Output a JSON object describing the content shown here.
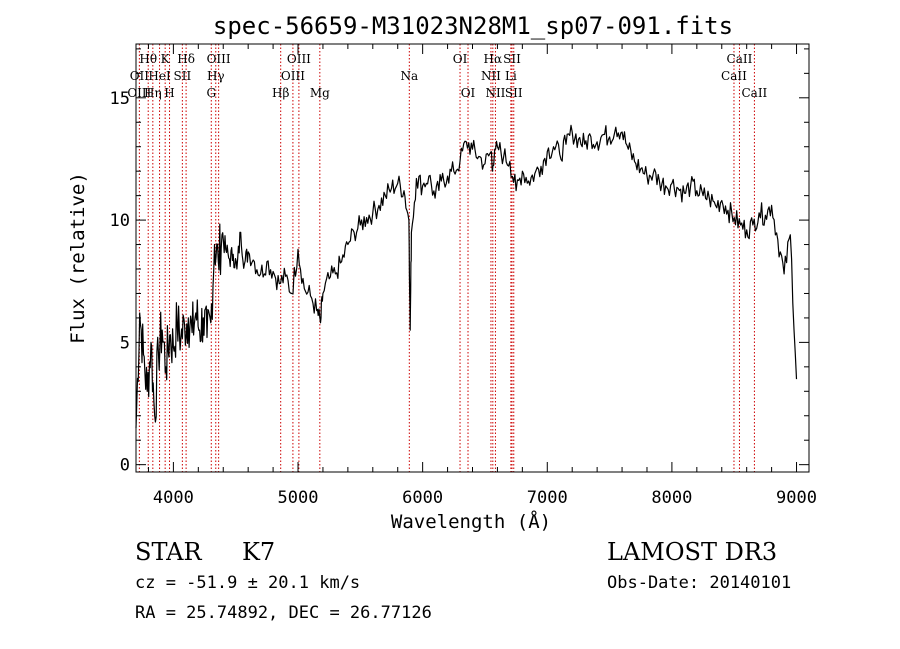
{
  "chart_data": {
    "type": "line",
    "title": "spec-56659-M31023N28M1_sp07-091.fits",
    "xlabel": "Wavelength (Å)",
    "ylabel": "Flux (relative)",
    "xlim": [
      3700,
      9100
    ],
    "ylim": [
      -0.3,
      17.2
    ],
    "x_ticks": [
      4000,
      5000,
      6000,
      7000,
      8000,
      9000
    ],
    "y_ticks": [
      0,
      5,
      10,
      15
    ],
    "series": [
      {
        "name": "spectrum",
        "x": [
          3700,
          3730,
          3760,
          3790,
          3820,
          3850,
          3880,
          3910,
          3940,
          3970,
          4000,
          4030,
          4060,
          4090,
          4120,
          4150,
          4180,
          4210,
          4240,
          4270,
          4300,
          4330,
          4360,
          4390,
          4420,
          4450,
          4480,
          4510,
          4540,
          4570,
          4600,
          4650,
          4700,
          4750,
          4800,
          4850,
          4900,
          4950,
          5000,
          5050,
          5100,
          5150,
          5180,
          5200,
          5250,
          5300,
          5350,
          5400,
          5450,
          5500,
          5550,
          5600,
          5650,
          5700,
          5750,
          5800,
          5850,
          5890,
          5900,
          5910,
          5950,
          6000,
          6050,
          6100,
          6150,
          6200,
          6250,
          6300,
          6350,
          6400,
          6450,
          6500,
          6550,
          6563,
          6600,
          6650,
          6700,
          6750,
          6800,
          6850,
          6900,
          6950,
          7000,
          7050,
          7100,
          7150,
          7200,
          7250,
          7300,
          7350,
          7400,
          7450,
          7500,
          7550,
          7600,
          7650,
          7700,
          7750,
          7800,
          7850,
          7900,
          7950,
          8000,
          8050,
          8100,
          8150,
          8200,
          8250,
          8300,
          8350,
          8400,
          8450,
          8500,
          8550,
          8600,
          8650,
          8700,
          8750,
          8800,
          8850,
          8900,
          8950,
          9000
        ],
        "y": [
          1.5,
          6.2,
          4.5,
          3.0,
          5.0,
          2.0,
          4.6,
          5.5,
          4.0,
          5.3,
          4.8,
          5.8,
          5.2,
          5.7,
          6.0,
          5.4,
          6.2,
          5.5,
          6.0,
          5.2,
          5.8,
          9.0,
          8.3,
          9.4,
          8.8,
          8.4,
          8.6,
          8.0,
          9.5,
          8.2,
          8.7,
          8.3,
          7.8,
          8.3,
          7.9,
          7.4,
          7.7,
          7.0,
          8.8,
          7.2,
          6.9,
          6.3,
          5.8,
          7.0,
          7.6,
          7.8,
          8.3,
          9.0,
          9.5,
          9.8,
          10.1,
          10.3,
          10.6,
          11.0,
          11.3,
          11.5,
          11.2,
          10.0,
          5.5,
          9.5,
          11.7,
          11.4,
          11.8,
          10.9,
          11.6,
          11.8,
          12.0,
          12.4,
          13.2,
          12.9,
          12.6,
          12.3,
          12.8,
          12.2,
          13.0,
          12.6,
          12.4,
          11.2,
          12.0,
          11.6,
          11.9,
          12.2,
          12.8,
          13.0,
          12.7,
          13.1,
          13.6,
          13.3,
          13.1,
          13.4,
          13.2,
          13.5,
          13.4,
          13.8,
          13.6,
          12.9,
          12.4,
          12.1,
          11.8,
          11.9,
          11.6,
          11.4,
          11.5,
          11.3,
          11.1,
          11.4,
          11.2,
          11.0,
          10.9,
          10.6,
          10.8,
          10.4,
          10.1,
          9.8,
          9.6,
          9.8,
          10.3,
          10.2,
          10.6,
          9.2,
          7.8,
          9.4,
          3.5
        ]
      }
    ],
    "line_labels": [
      {
        "text": "Hθ",
        "row": 1,
        "wavelength": 3798
      },
      {
        "text": "K",
        "row": 1,
        "wavelength": 3934
      },
      {
        "text": "Hδ",
        "row": 1,
        "wavelength": 4102
      },
      {
        "text": "OIII",
        "row": 1,
        "wavelength": 4363
      },
      {
        "text": "OIII",
        "row": 1,
        "wavelength": 5007
      },
      {
        "text": "OI",
        "row": 1,
        "wavelength": 6300
      },
      {
        "text": "Hα",
        "row": 1,
        "wavelength": 6563
      },
      {
        "text": "SII",
        "row": 1,
        "wavelength": 6717
      },
      {
        "text": "CaII",
        "row": 1,
        "wavelength": 8542
      },
      {
        "text": "OII",
        "row": 2,
        "wavelength": 3727
      },
      {
        "text": "HeI",
        "row": 2,
        "wavelength": 3889
      },
      {
        "text": "SII",
        "row": 2,
        "wavelength": 4072
      },
      {
        "text": "Hγ",
        "row": 2,
        "wavelength": 4340
      },
      {
        "text": "OIII",
        "row": 2,
        "wavelength": 4959
      },
      {
        "text": "Na",
        "row": 2,
        "wavelength": 5893
      },
      {
        "text": "NII",
        "row": 2,
        "wavelength": 6548
      },
      {
        "text": "Li",
        "row": 2,
        "wavelength": 6708
      },
      {
        "text": "CaII",
        "row": 2,
        "wavelength": 8498
      },
      {
        "text": "OIII",
        "row": 3,
        "wavelength": 3727
      },
      {
        "text": "Hη",
        "row": 3,
        "wavelength": 3835
      },
      {
        "text": "H",
        "row": 3,
        "wavelength": 3969
      },
      {
        "text": "G",
        "row": 3,
        "wavelength": 4304
      },
      {
        "text": "Hβ",
        "row": 3,
        "wavelength": 4861
      },
      {
        "text": "Mg",
        "row": 3,
        "wavelength": 5175
      },
      {
        "text": "OI",
        "row": 3,
        "wavelength": 6364
      },
      {
        "text": "NII",
        "row": 3,
        "wavelength": 6584
      },
      {
        "text": "SII",
        "row": 3,
        "wavelength": 6731
      },
      {
        "text": "CaII",
        "row": 3,
        "wavelength": 8662
      }
    ],
    "line_marks": [
      3727,
      3798,
      3835,
      3889,
      3934,
      3969,
      4072,
      4102,
      4304,
      4340,
      4363,
      4861,
      4959,
      5007,
      5175,
      5893,
      6300,
      6364,
      6548,
      6563,
      6584,
      6708,
      6717,
      6731,
      8498,
      8542,
      8662
    ],
    "grid": false,
    "legend": "none"
  },
  "info": {
    "object_class": "STAR",
    "subclass": "K7",
    "survey": "LAMOST DR3",
    "redshift": "cz = -51.9 ± 20.1 km/s",
    "obs_date": "Obs-Date: 20140101",
    "coords": "RA =  25.74892, DEC =  26.77126"
  },
  "colors": {
    "line_mark": "#cc0000",
    "spectrum": "#000000",
    "axis": "#000000"
  }
}
